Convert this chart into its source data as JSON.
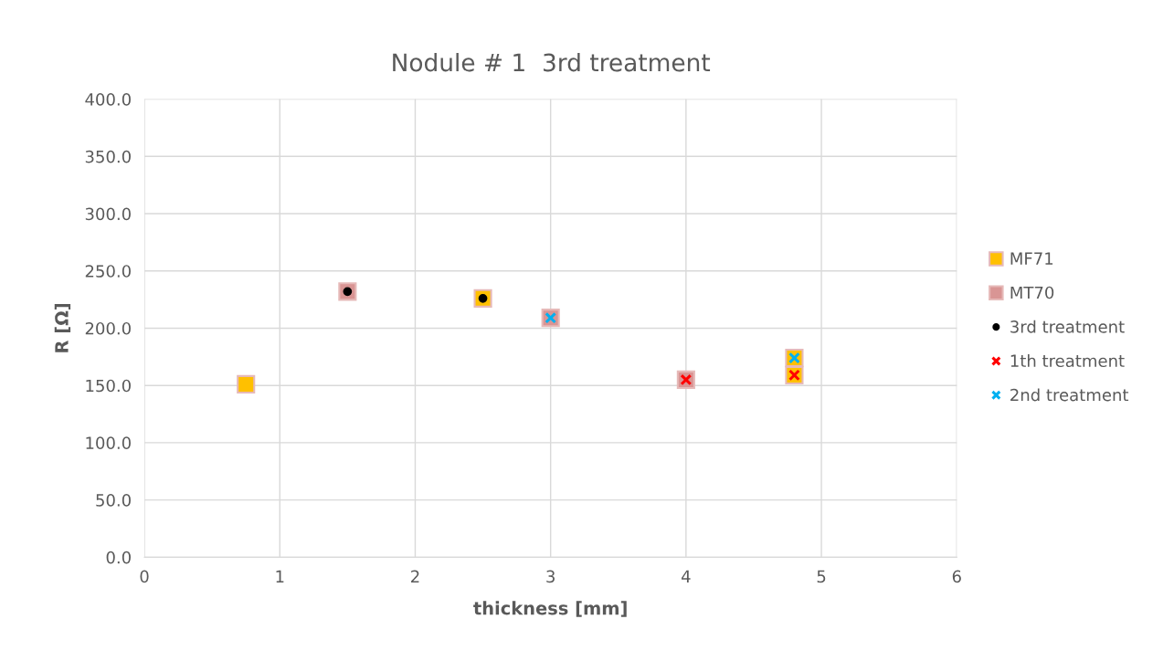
{
  "chart_data": {
    "type": "scatter",
    "title": "Nodule # 1  3rd treatment",
    "xlabel": "thickness [mm]",
    "ylabel": "R [Ω]",
    "xlim": [
      0,
      6
    ],
    "xticks": [
      0,
      1,
      2,
      3,
      4,
      5,
      6
    ],
    "ylim": [
      0,
      400
    ],
    "yticks": [
      {
        "value": 0,
        "label": "0.0"
      },
      {
        "value": 50,
        "label": "50.0"
      },
      {
        "value": 100,
        "label": "100.0"
      },
      {
        "value": 150,
        "label": "150.0"
      },
      {
        "value": 200,
        "label": "200.0"
      },
      {
        "value": 250,
        "label": "250.0"
      },
      {
        "value": 300,
        "label": "300.0"
      },
      {
        "value": 350,
        "label": "350.0"
      },
      {
        "value": 400,
        "label": "400.0"
      }
    ],
    "grid": true,
    "legend": "right",
    "series": [
      {
        "name": "MF71",
        "color": "#ffc000",
        "marker": "square",
        "x": [
          0.75,
          2.5,
          4.8,
          4.8
        ],
        "values": [
          151,
          226,
          174,
          159
        ]
      },
      {
        "name": "MT70",
        "color": "#d99594",
        "marker": "square",
        "x": [
          1.5,
          3.0,
          4.0
        ],
        "values": [
          232,
          209,
          155
        ]
      },
      {
        "name": "3rd treatment",
        "color": "#000000",
        "marker": "circle",
        "x": [
          1.5,
          2.5
        ],
        "values": [
          232,
          226
        ]
      },
      {
        "name": "1th treatment",
        "color": "#ff0000",
        "marker": "cross",
        "x": [
          4.0,
          4.8
        ],
        "values": [
          155,
          159
        ]
      },
      {
        "name": "2nd treatment",
        "color": "#00b0f0",
        "marker": "cross",
        "x": [
          3.0,
          4.8
        ],
        "values": [
          209,
          174
        ]
      }
    ]
  }
}
